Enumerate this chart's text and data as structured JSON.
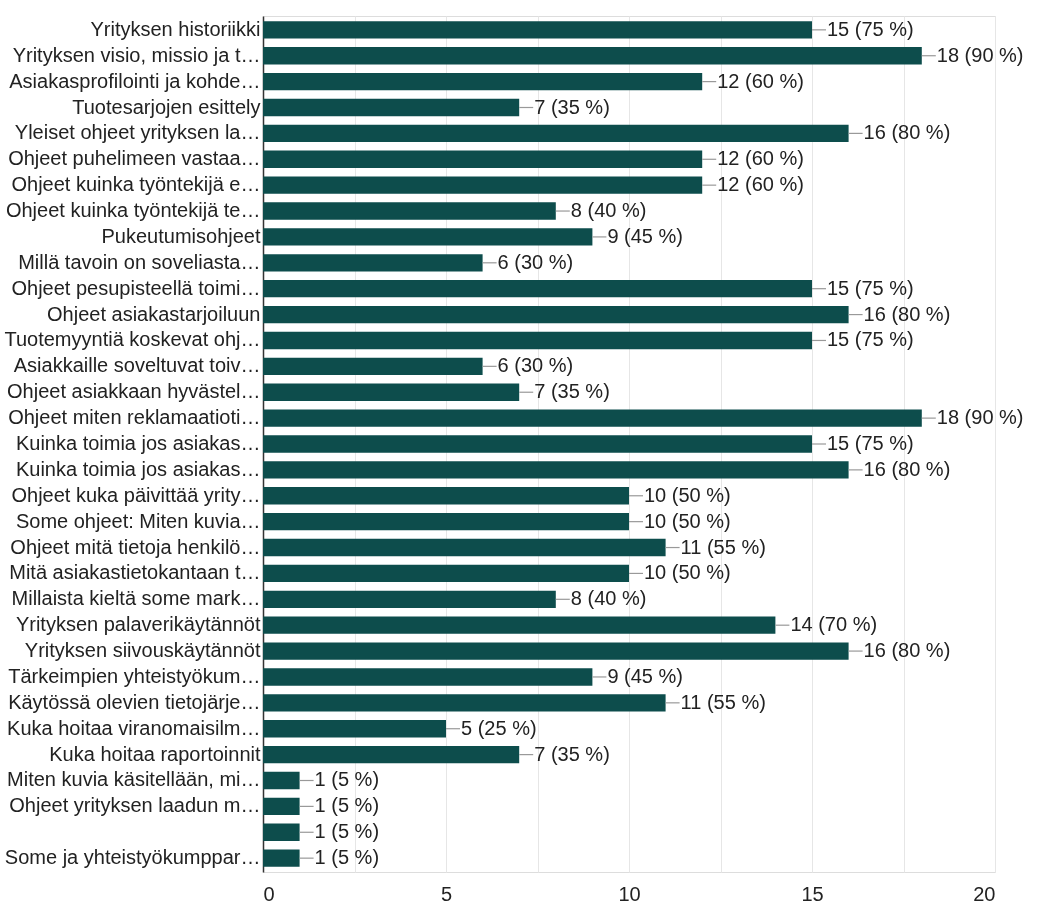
{
  "chart_data": {
    "type": "bar",
    "orientation": "horizontal",
    "categories": [
      "Yrityksen historiikki",
      "Yrityksen visio, missio ja t…",
      "Asiakasprofilointi ja kohde…",
      "Tuotesarjojen esittely",
      "Yleiset ohjeet yrityksen la…",
      "Ohjeet puhelimeen vastaa…",
      "Ohjeet kuinka työntekijä e…",
      "Ohjeet kuinka työntekijä te…",
      "Pukeutumisohjeet",
      "Millä tavoin on soveliasta…",
      "Ohjeet pesupisteellä toimi…",
      "Ohjeet asiakastarjoiluun",
      "Tuotemyyntiä koskevat ohj…",
      "Asiakkaille soveltuvat toiv…",
      "Ohjeet asiakkaan hyvästel…",
      "Ohjeet miten reklamaatioti…",
      "Kuinka toimia jos asiakas…",
      "Kuinka toimia jos asiakas…",
      "Ohjeet kuka päivittää yrity…",
      "Some ohjeet: Miten kuvia…",
      "Ohjeet mitä tietoja henkilö…",
      "Mitä asiakastietokantaan t…",
      "Millaista kieltä some mark…",
      "Yrityksen palaverikäytännöt",
      "Yrityksen siivouskäytännöt",
      "Tärkeimpien yhteistyökum…",
      "Käytössä olevien tietojärje…",
      "Kuka hoitaa viranomaisilm…",
      "Kuka hoitaa raportoinnit",
      "Miten kuvia käsitellään, mi…",
      "Ohjeet yrityksen laadun m…",
      null,
      "Some ja yhteistyökumppar…"
    ],
    "values": [
      15,
      18,
      12,
      7,
      16,
      12,
      12,
      8,
      9,
      6,
      15,
      16,
      15,
      6,
      7,
      18,
      15,
      16,
      10,
      10,
      11,
      10,
      8,
      14,
      16,
      9,
      11,
      5,
      7,
      1,
      1,
      1,
      1
    ],
    "value_labels": [
      "15 (75 %)",
      "18 (90 %)",
      "12 (60 %)",
      "7 (35 %)",
      "16 (80 %)",
      "12 (60 %)",
      "12 (60 %)",
      "8 (40 %)",
      "9 (45 %)",
      "6 (30 %)",
      "15 (75 %)",
      "16 (80 %)",
      "15 (75 %)",
      "6 (30 %)",
      "7 (35 %)",
      "18 (90 %)",
      "15 (75 %)",
      "16 (80 %)",
      "10 (50 %)",
      "10 (50 %)",
      "11 (55 %)",
      "10 (50 %)",
      "8 (40 %)",
      "14 (70 %)",
      "16 (80 %)",
      "9 (45 %)",
      "11 (55 %)",
      "5 (25 %)",
      "7 (35 %)",
      "1 (5 %)",
      "1 (5 %)",
      "1 (5 %)",
      "1 (5 %)"
    ],
    "color": "#0d4d4c",
    "xlim": [
      0,
      20
    ],
    "xticks": [
      0,
      {
        "value": 2.5,
        "label": null
      },
      5,
      {
        "value": 7.5,
        "label": null
      },
      10,
      {
        "value": 12.5,
        "label": null
      },
      15,
      {
        "value": 17.5,
        "label": null
      },
      20
    ],
    "grid": "x"
  }
}
